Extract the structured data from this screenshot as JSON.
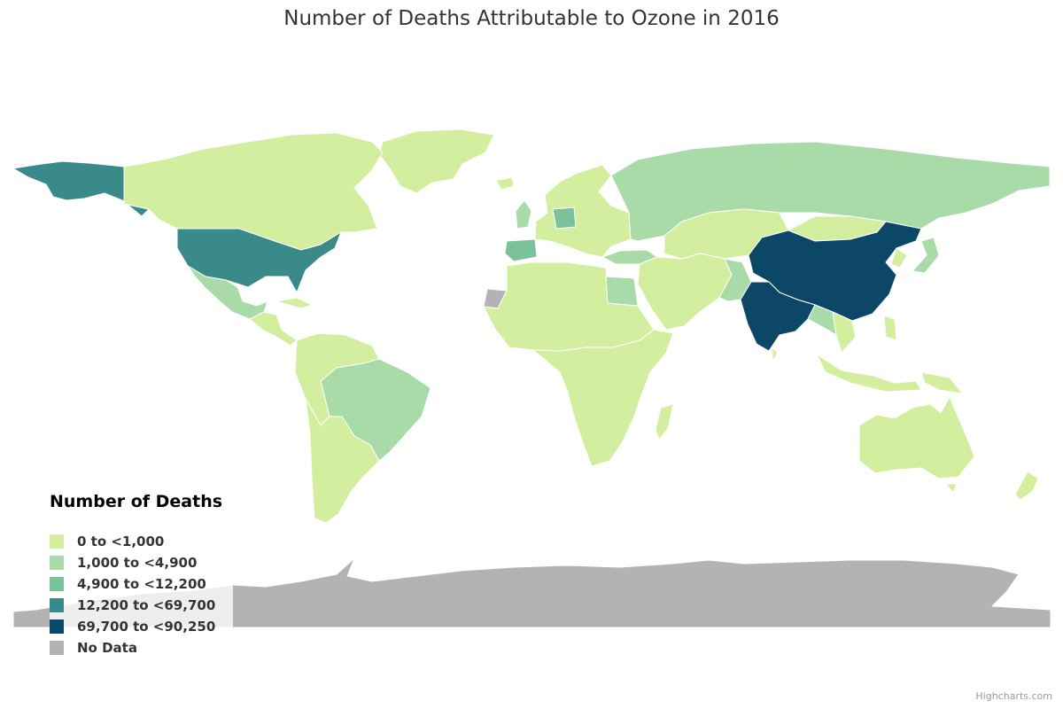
{
  "title": "Number of Deaths Attributable to Ozone in 2016",
  "credits": "Highcharts.com",
  "legend": {
    "title": "Number of Deaths",
    "items": [
      {
        "label": "0 to <1,000",
        "color": "#d3ee9f"
      },
      {
        "label": "1,000 to <4,900",
        "color": "#a8dba7"
      },
      {
        "label": "4,900 to <12,200",
        "color": "#7bc29c"
      },
      {
        "label": "12,200 to <69,700",
        "color": "#3a8a8a"
      },
      {
        "label": "69,700 to <90,250",
        "color": "#0d4768"
      },
      {
        "label": "No Data",
        "color": "#b3b3b3"
      }
    ]
  },
  "chart_data": {
    "type": "choropleth",
    "title": "Number of Deaths Attributable to Ozone in 2016",
    "legend_position": "bottom-left",
    "classes": [
      "0 to <1,000",
      "1,000 to <4,900",
      "4,900 to <12,200",
      "12,200 to <69,700",
      "69,700 to <90,250",
      "No Data"
    ],
    "regions": [
      {
        "name": "China",
        "class": 4
      },
      {
        "name": "India",
        "class": 4
      },
      {
        "name": "United States",
        "class": 3
      },
      {
        "name": "Russia",
        "class": 1
      },
      {
        "name": "Brazil",
        "class": 1
      },
      {
        "name": "Mexico",
        "class": 1
      },
      {
        "name": "Egypt",
        "class": 1
      },
      {
        "name": "Pakistan",
        "class": 1
      },
      {
        "name": "Bangladesh",
        "class": 1
      },
      {
        "name": "Turkey",
        "class": 1
      },
      {
        "name": "Germany",
        "class": 2
      },
      {
        "name": "Spain",
        "class": 2
      },
      {
        "name": "United Kingdom",
        "class": 1
      },
      {
        "name": "Japan",
        "class": 1
      },
      {
        "name": "Canada",
        "class": 0
      },
      {
        "name": "Greenland",
        "class": 0
      },
      {
        "name": "Australia",
        "class": 0
      },
      {
        "name": "Western Sahara",
        "class": 5
      },
      {
        "name": "Antarctica",
        "class": 5
      }
    ]
  }
}
